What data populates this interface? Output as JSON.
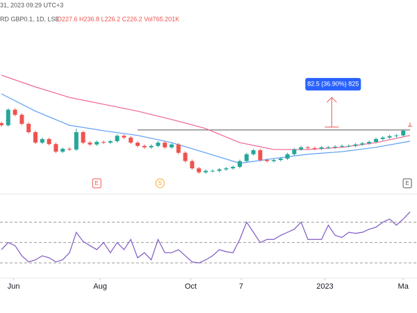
{
  "header": {
    "time": "31, 2023 09:29 UTC+3",
    "symbol": "RD GBP0.1, 1D, LSE",
    "ohlc": "O227.6 H236.8 L226.2 C226.2 Vol765.201K"
  },
  "chart_data": [
    {
      "type": "candlestick",
      "x": [
        0,
        1,
        2,
        3,
        4,
        5,
        6,
        7,
        8,
        9,
        10,
        11,
        12,
        13,
        14,
        15,
        16,
        17,
        18,
        19,
        20,
        21,
        22,
        23,
        24,
        25,
        26,
        27,
        28,
        29,
        30,
        31,
        32,
        33,
        34,
        35,
        36,
        37,
        38,
        39,
        40,
        41,
        42,
        43,
        44,
        45,
        46,
        47,
        48,
        49,
        50,
        51,
        52,
        53,
        54,
        55,
        56,
        57,
        58,
        59,
        60
      ],
      "open": [
        235,
        229,
        272,
        258,
        233,
        210,
        181,
        191,
        177,
        156,
        164,
        162,
        210,
        181,
        176,
        183,
        181,
        185,
        200,
        195,
        181,
        172,
        168,
        172,
        181,
        168,
        176,
        153,
        130,
        110,
        99,
        103,
        103,
        107,
        110,
        114,
        130,
        149,
        160,
        133,
        130,
        133,
        137,
        149,
        162,
        168,
        166,
        164,
        168,
        168,
        170,
        172,
        172,
        176,
        179,
        183,
        191,
        195,
        199,
        201,
        227.6
      ],
      "high": [
        239,
        276,
        276,
        262,
        237,
        214,
        195,
        195,
        181,
        168,
        168,
        220,
        214,
        185,
        187,
        187,
        189,
        204,
        204,
        199,
        185,
        176,
        176,
        185,
        185,
        180,
        180,
        157,
        134,
        114,
        107,
        107,
        111,
        114,
        118,
        134,
        153,
        164,
        164,
        137,
        137,
        141,
        153,
        166,
        172,
        172,
        170,
        172,
        172,
        174,
        176,
        176,
        180,
        183,
        187,
        195,
        199,
        203,
        205,
        218,
        236.8
      ],
      "low": [
        225,
        225,
        254,
        229,
        206,
        177,
        177,
        173,
        152,
        152,
        158,
        158,
        177,
        172,
        172,
        177,
        177,
        181,
        191,
        177,
        168,
        164,
        164,
        168,
        164,
        164,
        149,
        126,
        106,
        95,
        95,
        99,
        99,
        103,
        106,
        110,
        126,
        145,
        129,
        126,
        126,
        129,
        133,
        145,
        158,
        162,
        160,
        160,
        164,
        164,
        166,
        168,
        168,
        172,
        175,
        179,
        187,
        191,
        195,
        197,
        226.2
      ],
      "close": [
        229,
        272,
        258,
        233,
        210,
        181,
        191,
        177,
        156,
        164,
        162,
        210,
        181,
        176,
        183,
        181,
        185,
        200,
        195,
        181,
        172,
        168,
        172,
        181,
        168,
        176,
        153,
        130,
        110,
        99,
        103,
        103,
        107,
        110,
        114,
        130,
        149,
        160,
        133,
        130,
        133,
        137,
        149,
        162,
        168,
        166,
        164,
        168,
        168,
        170,
        172,
        172,
        176,
        179,
        183,
        191,
        195,
        199,
        201,
        214,
        226.2
      ],
      "up_color": "#26a69a",
      "down_color": "#ef5350",
      "series": [
        {
          "color": "#f06292",
          "x": [
            0,
            5,
            10,
            15,
            20,
            25,
            30,
            35,
            40,
            45,
            50,
            55,
            60
          ],
          "values": [
            367.6,
            335,
            306,
            287,
            268,
            245,
            220,
            181,
            162,
            162,
            168,
            181,
            201
          ]
        },
        {
          "color": "#5b9cf6",
          "x": [
            0,
            5,
            10,
            15,
            20,
            25,
            30,
            35,
            40,
            45,
            50,
            55,
            60
          ],
          "values": [
            316,
            268,
            229,
            214,
            201,
            181,
            153,
            124,
            137,
            149,
            156,
            168,
            185
          ]
        }
      ],
      "level": {
        "value": 216,
        "x": [
          20,
          60
        ],
        "color": "#555"
      },
      "annotation": {
        "label": "82.5 (36.90%) 825",
        "x": 48.5,
        "from": 224,
        "to": 306,
        "color": "#2962ff",
        "arrow_color": "#ef5350"
      },
      "events": [
        {
          "label": "E",
          "x": 14,
          "color": "#ef5350"
        },
        {
          "label": "S",
          "x": 23.3,
          "color": "#f9a825"
        },
        {
          "label": "E",
          "x": 59.6,
          "color": "#555"
        }
      ],
      "xlim": [
        0,
        60
      ],
      "ylim": [
        60,
        460
      ],
      "xticks": [
        {
          "value": 1.8,
          "label": "Jun"
        },
        {
          "value": 14.5,
          "label": "Aug"
        },
        {
          "value": 27.8,
          "label": "Oct"
        },
        {
          "value": 35.2,
          "label": "7"
        },
        {
          "value": 47.5,
          "label": "2023"
        },
        {
          "value": 59,
          "label": "Ma"
        }
      ]
    },
    {
      "type": "line",
      "x": [
        0,
        1,
        2,
        3,
        4,
        5,
        6,
        7,
        8,
        9,
        10,
        11,
        12,
        13,
        14,
        15,
        16,
        17,
        18,
        19,
        20,
        21,
        22,
        23,
        24,
        25,
        26,
        27,
        28,
        29,
        30,
        31,
        32,
        33,
        34,
        35,
        36,
        37,
        38,
        39,
        40,
        41,
        42,
        43,
        44,
        45,
        46,
        47,
        48,
        49,
        50,
        51,
        52,
        53,
        54,
        55,
        56,
        57,
        58,
        59,
        60
      ],
      "values": [
        43,
        50,
        47,
        37,
        31,
        33,
        37,
        35,
        31,
        33,
        40,
        60,
        51,
        47,
        43,
        50,
        40,
        50,
        43,
        53,
        35,
        40,
        33,
        53,
        40,
        40,
        43,
        37,
        31,
        30,
        33,
        37,
        43,
        41,
        40,
        53,
        70,
        60,
        50,
        53,
        53,
        57,
        60,
        63,
        70,
        53,
        53,
        53,
        67,
        57,
        55,
        60,
        59,
        60,
        63,
        65,
        70,
        73,
        67,
        73,
        80
      ],
      "color": "#7e57c2",
      "levels": [
        70,
        50,
        30
      ],
      "xlim": [
        0,
        60
      ],
      "ylim": [
        15,
        90
      ]
    }
  ]
}
